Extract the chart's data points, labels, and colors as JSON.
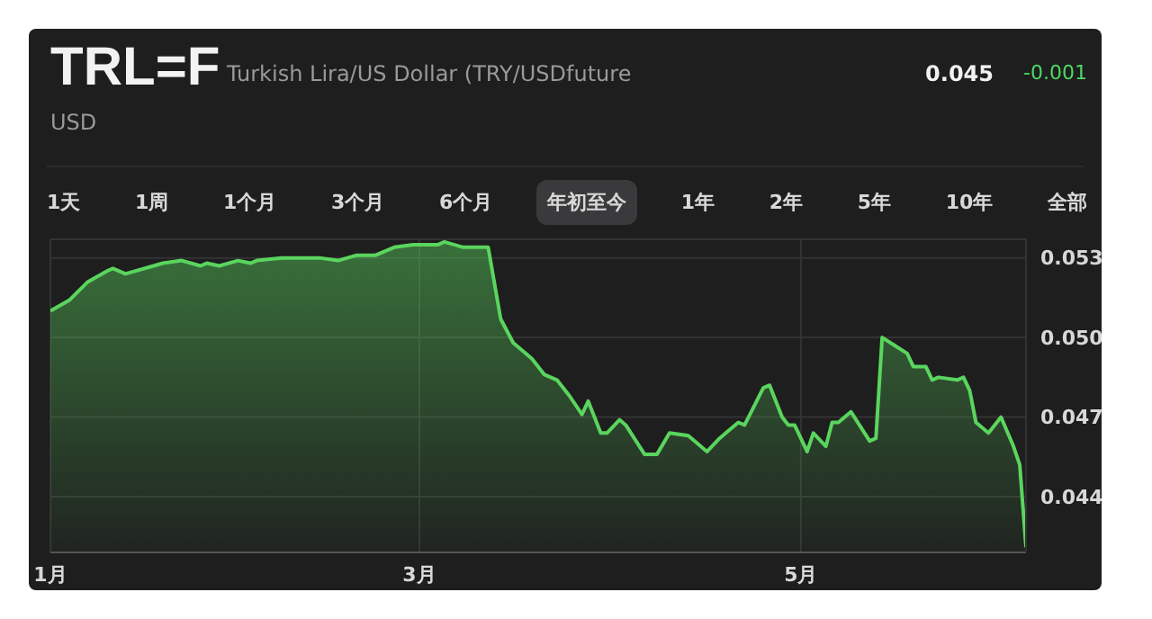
{
  "chart_data": {
    "type": "area",
    "title": "TRL=F",
    "subtitle": "Turkish Lira/US Dollar (TRY/USDfuture",
    "annotations": [
      "USD",
      "0.045",
      "-0.001",
      "1天",
      "1周",
      "1个月",
      "3个月",
      "6个月",
      "年初至今",
      "1年",
      "2年",
      "5年",
      "10年",
      "全部"
    ],
    "x": [
      "--01-01",
      "--01-04",
      "--01-07",
      "--01-10",
      "--01-11",
      "--01-13",
      "--01-19",
      "--01-22",
      "--01-25",
      "--01-26",
      "--01-28",
      "--01-31",
      "--02-02",
      "--02-03",
      "--02-07",
      "--02-13",
      "--02-16",
      "--02-19",
      "--02-22",
      "--02-25",
      "--02-28",
      "--03-04",
      "--03-05",
      "--03-08",
      "--03-12",
      "--03-14",
      "--03-16",
      "--03-18",
      "--03-19",
      "--03-21",
      "--03-23",
      "--03-25",
      "--03-27",
      "--03-28",
      "--03-30",
      "--03-31",
      "--04-02",
      "--04-03",
      "--04-06",
      "--04-08",
      "--04-10",
      "--04-13",
      "--04-16",
      "--04-18",
      "--04-19",
      "--04-21",
      "--04-22",
      "--04-25",
      "--04-26",
      "--04-28",
      "--04-29",
      "--04-30",
      "--05-02",
      "--05-03",
      "--05-05",
      "--05-06",
      "--05-07",
      "--05-09",
      "--05-12",
      "--05-13",
      "--05-14",
      "--05-16",
      "--05-18",
      "--05-19",
      "--05-21",
      "--05-22",
      "--05-23",
      "--05-26",
      "--05-27",
      "--05-28",
      "--05-29",
      "--05-31",
      "--06-01",
      "--06-02",
      "--06-04",
      "--06-05",
      "--06-06"
    ],
    "series": [
      {
        "color": "#5ad55e",
        "values": [
          0.051,
          0.0514,
          0.0521,
          0.0525,
          0.0526,
          0.0524,
          0.0528,
          0.0529,
          0.0527,
          0.0528,
          0.0527,
          0.0529,
          0.0528,
          0.0529,
          0.053,
          0.053,
          0.0529,
          0.0531,
          0.0531,
          0.0534,
          0.0535,
          0.0535,
          0.0536,
          0.0534,
          0.0534,
          0.0507,
          0.0498,
          0.0494,
          0.0492,
          0.0486,
          0.0484,
          0.0478,
          0.0471,
          0.0476,
          0.0464,
          0.0464,
          0.0469,
          0.0467,
          0.0456,
          0.0456,
          0.0464,
          0.0463,
          0.0457,
          0.0462,
          0.0464,
          0.0468,
          0.0467,
          0.0481,
          0.0482,
          0.047,
          0.0467,
          0.0467,
          0.0457,
          0.0464,
          0.0459,
          0.0468,
          0.0468,
          0.0472,
          0.0461,
          0.0462,
          0.05,
          0.0497,
          0.0494,
          0.0489,
          0.0489,
          0.0484,
          0.0485,
          0.0484,
          0.0485,
          0.048,
          0.0468,
          0.0464,
          0.0467,
          0.047,
          0.0459,
          0.0452,
          0.0421
        ]
      }
    ],
    "xlim": [
      "--01-01",
      "--06-06"
    ],
    "xticks": [
      {
        "value": "--01-01",
        "label": "1月"
      },
      {
        "value": "--03-01",
        "label": "3月"
      },
      {
        "value": "--05-01",
        "label": "5月"
      }
    ],
    "ylim": [
      0.0419,
      0.0537
    ],
    "yticks": [
      0.053,
      {
        "value": 0.05,
        "label": "0.050"
      },
      0.047,
      0.044
    ],
    "grid": true
  }
}
